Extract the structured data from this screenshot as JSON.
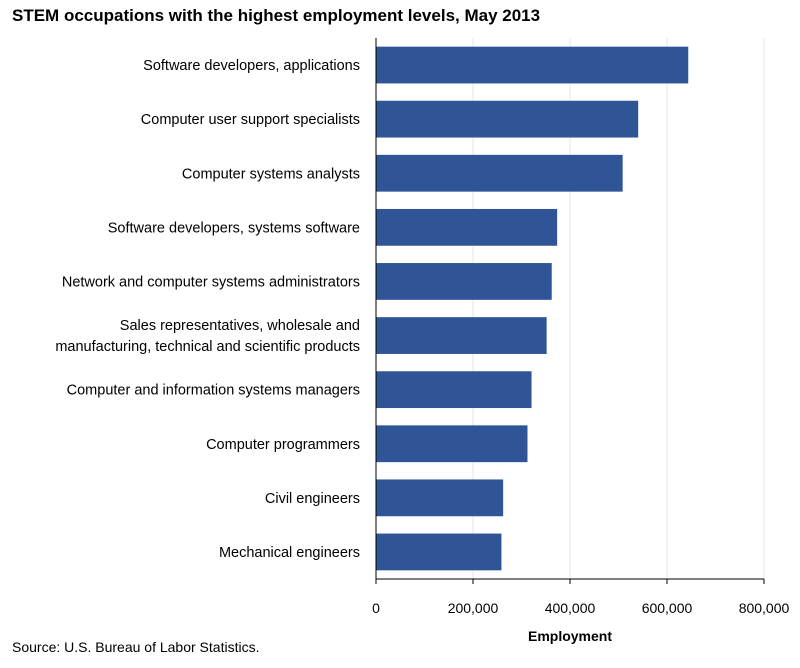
{
  "title": "STEM occupations with the highest employment levels, May 2013",
  "source": "Source: U.S. Bureau of Labor Statistics.",
  "colors": {
    "bar": "#2F5597",
    "grid": "#E6E6E6",
    "axis": "#000000"
  },
  "chart_data": {
    "type": "bar",
    "orientation": "horizontal",
    "title": "STEM occupations with the highest employment levels, May 2013",
    "xlabel": "Employment",
    "ylabel": "",
    "xlim": [
      0,
      800000
    ],
    "xticks": [
      0,
      200000,
      400000,
      600000,
      800000
    ],
    "xtick_labels": [
      "0",
      "200,000",
      "400,000",
      "600,000",
      "800,000"
    ],
    "grid": "vertical",
    "categories": [
      [
        "Software developers, applications"
      ],
      [
        "Computer user support specialists"
      ],
      [
        "Computer systems analysts"
      ],
      [
        "Software developers, systems software"
      ],
      [
        "Network and computer systems administrators"
      ],
      [
        "Sales representatives, wholesale and",
        "manufacturing, technical and scientific products"
      ],
      [
        "Computer and information systems managers"
      ],
      [
        "Computer programmers"
      ],
      [
        "Civil engineers"
      ],
      [
        "Mechanical engineers"
      ]
    ],
    "values": [
      643830,
      540560,
      508550,
      373510,
      362310,
      351840,
      320720,
      312340,
      262170,
      258630
    ]
  }
}
